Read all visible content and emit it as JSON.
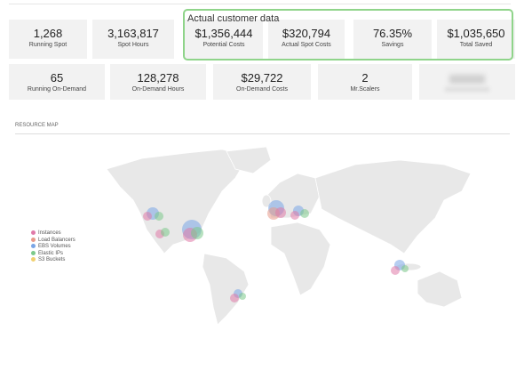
{
  "highlight_label": "Actual customer data",
  "stats_row_1": [
    {
      "value": "1,268",
      "label": "Running Spot"
    },
    {
      "value": "3,163,817",
      "label": "Spot Hours"
    },
    {
      "value": "$1,356,444",
      "label": "Potential Costs"
    },
    {
      "value": "$320,794",
      "label": "Actual Spot Costs"
    },
    {
      "value": "76.35%",
      "label": "Savings"
    },
    {
      "value": "$1,035,650",
      "label": "Total Saved"
    }
  ],
  "stats_row_2": [
    {
      "value": "65",
      "label": "Running On-Demand"
    },
    {
      "value": "128,278",
      "label": "On-Demand Hours"
    },
    {
      "value": "$29,722",
      "label": "On-Demand Costs"
    },
    {
      "value": "2",
      "label": "Mr.Scalers"
    }
  ],
  "section_title": "RESOURCE MAP",
  "legend": [
    {
      "name": "Instances",
      "color": "#e07aa8"
    },
    {
      "name": "Load Balancers",
      "color": "#e89a8a"
    },
    {
      "name": "EBS Volumes",
      "color": "#7aa6e6"
    },
    {
      "name": "Elastic IPs",
      "color": "#7cc98a"
    },
    {
      "name": "S3 Buckets",
      "color": "#f0d070"
    }
  ]
}
